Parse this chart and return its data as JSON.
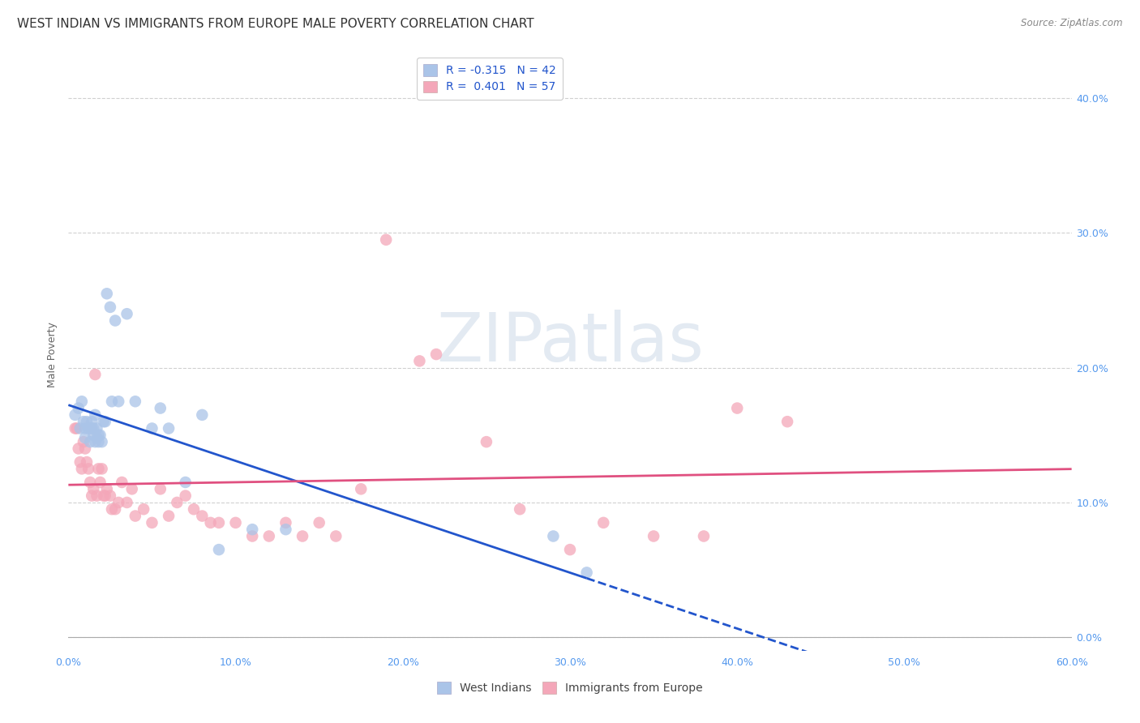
{
  "title": "WEST INDIAN VS IMMIGRANTS FROM EUROPE MALE POVERTY CORRELATION CHART",
  "source": "Source: ZipAtlas.com",
  "ylabel": "Male Poverty",
  "xlim": [
    0.0,
    0.6
  ],
  "ylim": [
    -0.01,
    0.43
  ],
  "xticks": [
    0.0,
    0.1,
    0.2,
    0.3,
    0.4,
    0.5,
    0.6
  ],
  "xticklabels": [
    "0.0%",
    "10.0%",
    "20.0%",
    "30.0%",
    "40.0%",
    "50.0%",
    "60.0%"
  ],
  "yticks": [
    0.0,
    0.1,
    0.2,
    0.3,
    0.4
  ],
  "yticklabels_right": [
    "0.0%",
    "10.0%",
    "20.0%",
    "30.0%",
    "40.0%"
  ],
  "grid_color": "#d0d0d0",
  "background_color": "#ffffff",
  "legend1_label": "R = -0.315   N = 42",
  "legend2_label": "R =  0.401   N = 57",
  "west_indian_color": "#aac4e8",
  "europe_color": "#f4a7b9",
  "west_indian_line_color": "#2255cc",
  "europe_line_color": "#e05080",
  "west_indian_x": [
    0.004,
    0.006,
    0.007,
    0.008,
    0.009,
    0.01,
    0.01,
    0.011,
    0.012,
    0.013,
    0.013,
    0.014,
    0.014,
    0.015,
    0.015,
    0.016,
    0.016,
    0.017,
    0.017,
    0.018,
    0.018,
    0.019,
    0.02,
    0.021,
    0.022,
    0.023,
    0.025,
    0.026,
    0.028,
    0.03,
    0.035,
    0.04,
    0.05,
    0.055,
    0.06,
    0.07,
    0.08,
    0.09,
    0.11,
    0.13,
    0.29,
    0.31
  ],
  "west_indian_y": [
    0.165,
    0.17,
    0.155,
    0.175,
    0.16,
    0.155,
    0.148,
    0.16,
    0.155,
    0.155,
    0.145,
    0.155,
    0.16,
    0.155,
    0.15,
    0.145,
    0.165,
    0.155,
    0.148,
    0.145,
    0.15,
    0.15,
    0.145,
    0.16,
    0.16,
    0.255,
    0.245,
    0.175,
    0.235,
    0.175,
    0.24,
    0.175,
    0.155,
    0.17,
    0.155,
    0.115,
    0.165,
    0.065,
    0.08,
    0.08,
    0.075,
    0.048
  ],
  "europe_x": [
    0.004,
    0.005,
    0.006,
    0.007,
    0.008,
    0.009,
    0.01,
    0.011,
    0.012,
    0.013,
    0.014,
    0.015,
    0.016,
    0.017,
    0.018,
    0.019,
    0.02,
    0.021,
    0.022,
    0.023,
    0.025,
    0.026,
    0.028,
    0.03,
    0.032,
    0.035,
    0.038,
    0.04,
    0.045,
    0.05,
    0.055,
    0.06,
    0.065,
    0.07,
    0.075,
    0.08,
    0.085,
    0.09,
    0.1,
    0.11,
    0.12,
    0.13,
    0.14,
    0.15,
    0.16,
    0.175,
    0.19,
    0.21,
    0.22,
    0.25,
    0.27,
    0.3,
    0.32,
    0.35,
    0.38,
    0.4,
    0.43
  ],
  "europe_y": [
    0.155,
    0.155,
    0.14,
    0.13,
    0.125,
    0.145,
    0.14,
    0.13,
    0.125,
    0.115,
    0.105,
    0.11,
    0.195,
    0.105,
    0.125,
    0.115,
    0.125,
    0.105,
    0.105,
    0.11,
    0.105,
    0.095,
    0.095,
    0.1,
    0.115,
    0.1,
    0.11,
    0.09,
    0.095,
    0.085,
    0.11,
    0.09,
    0.1,
    0.105,
    0.095,
    0.09,
    0.085,
    0.085,
    0.085,
    0.075,
    0.075,
    0.085,
    0.075,
    0.085,
    0.075,
    0.11,
    0.295,
    0.205,
    0.21,
    0.145,
    0.095,
    0.065,
    0.085,
    0.075,
    0.075,
    0.17,
    0.16
  ],
  "title_fontsize": 11,
  "axis_label_fontsize": 9,
  "tick_fontsize": 9,
  "legend_fontsize": 10,
  "watermark_text": "ZIPatlas",
  "watermark_color": "#ccd9e8",
  "watermark_fontsize": 60,
  "scatter_size": 110,
  "scatter_alpha": 0.75
}
